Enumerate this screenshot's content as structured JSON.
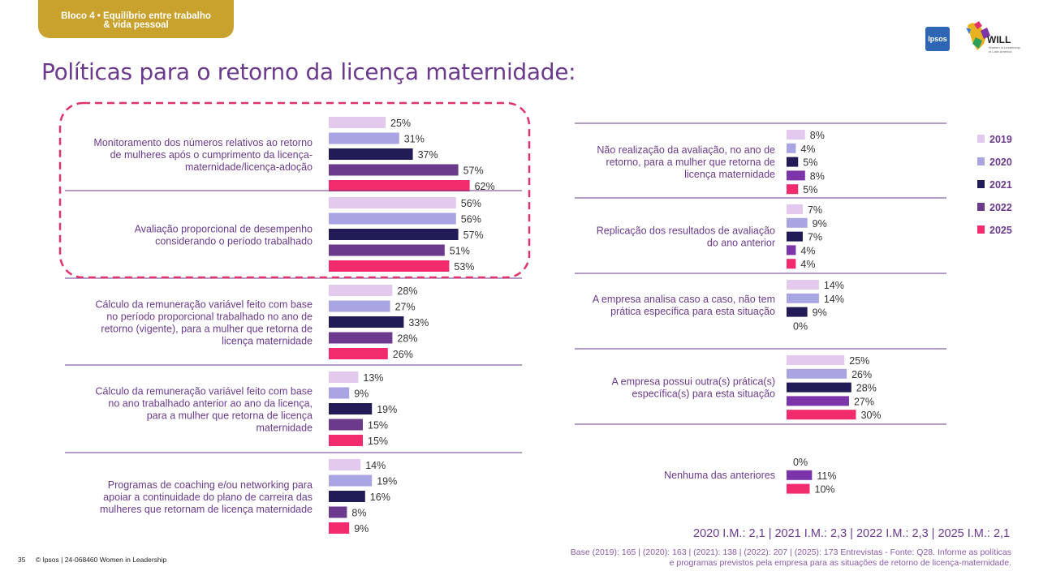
{
  "header": {
    "tag_line1": "Bloco 4 • Equilíbrio entre trabalho",
    "tag_line2": "& vida pessoal",
    "title": "Políticas para o retorno da licença maternidade:",
    "logo_ipsos": "Ipsos",
    "logo_will": "WILL",
    "logo_will_sub": "Women in Leadership in Latin America"
  },
  "colors": {
    "2019": "#e4c9ef",
    "2020": "#a9a4e2",
    "2021": "#221c56",
    "2022": "#6b3a8c",
    "2025": "#f22b6c",
    "2022_right": "#7b35a8",
    "divider": "#6b3a8c",
    "highlight": "#e0336a"
  },
  "chart_data": {
    "type": "bar",
    "orientation": "horizontal",
    "legend": [
      "2019",
      "2020",
      "2021",
      "2022",
      "2025"
    ],
    "legend_position": "right",
    "left_panel": [
      {
        "label": [
          "Monitoramento dos números relativos ao retorno",
          "de mulheres após o cumprimento da licença-",
          "maternidade/licença-adoção"
        ],
        "values": [
          25,
          31,
          37,
          57,
          62
        ],
        "highlighted": true
      },
      {
        "label": [
          "Avaliação proporcional de desempenho",
          "considerando o período trabalhado"
        ],
        "values": [
          56,
          56,
          57,
          51,
          53
        ],
        "highlighted": true
      },
      {
        "label": [
          "Cálculo da remuneração variável feito com base",
          "no período proporcional trabalhado no ano de",
          "retorno (vigente), para a mulher que retorna de",
          "licença maternidade"
        ],
        "values": [
          28,
          27,
          33,
          28,
          26
        ]
      },
      {
        "label": [
          "Cálculo da remuneração variável feito com base",
          "no ano trabalhado anterior ao ano da licença,",
          "para a mulher que retorna de licença",
          "maternidade"
        ],
        "values": [
          13,
          9,
          19,
          15,
          15
        ]
      },
      {
        "label": [
          "Programas de coaching e/ou networking para",
          "apoiar a continuidade do plano de carreira das",
          "mulheres que retornam de licença maternidade"
        ],
        "values": [
          14,
          19,
          16,
          8,
          9
        ]
      }
    ],
    "right_panel": [
      {
        "label": [
          "Não realização da avaliação, no ano de",
          "retorno, para a mulher que retorna de",
          "licença maternidade"
        ],
        "values": [
          8,
          4,
          5,
          8,
          5
        ]
      },
      {
        "label": [
          "Replicação dos resultados de avaliação",
          "do ano anterior"
        ],
        "values": [
          7,
          9,
          7,
          4,
          4
        ]
      },
      {
        "label": [
          "A empresa analisa caso a caso, não tem",
          "prática específica para esta situação"
        ],
        "values": [
          14,
          14,
          9,
          0
        ],
        "years": [
          "2019",
          "2020",
          "2021",
          "2022"
        ]
      },
      {
        "label": [
          "A empresa possui outra(s) prática(s)",
          "específica(s) para esta situação"
        ],
        "values": [
          25,
          26,
          28,
          27,
          30
        ]
      },
      {
        "label": [
          "Nenhuma das anteriores"
        ],
        "values": [
          0,
          11,
          10
        ],
        "years": [
          "2021",
          "2022",
          "2025"
        ]
      }
    ]
  },
  "im_line": "2020 I.M.: 2,1 | 2021 I.M.: 2,3 | 2022 I.M.: 2,3 | 2025 I.M.: 2,1",
  "base_line1": "Base (2019): 165 | (2020): 163 | (2021): 138 | (2022): 207 | (2025): 173 Entrevistas - Fonte: Q28. Informe as políticas",
  "base_line2": "e programas previstos pela empresa para as situações de retorno de licença-maternidade.",
  "footer": {
    "page": "35",
    "copyright": "© Ipsos | 24-068460 Women in Leadership"
  }
}
